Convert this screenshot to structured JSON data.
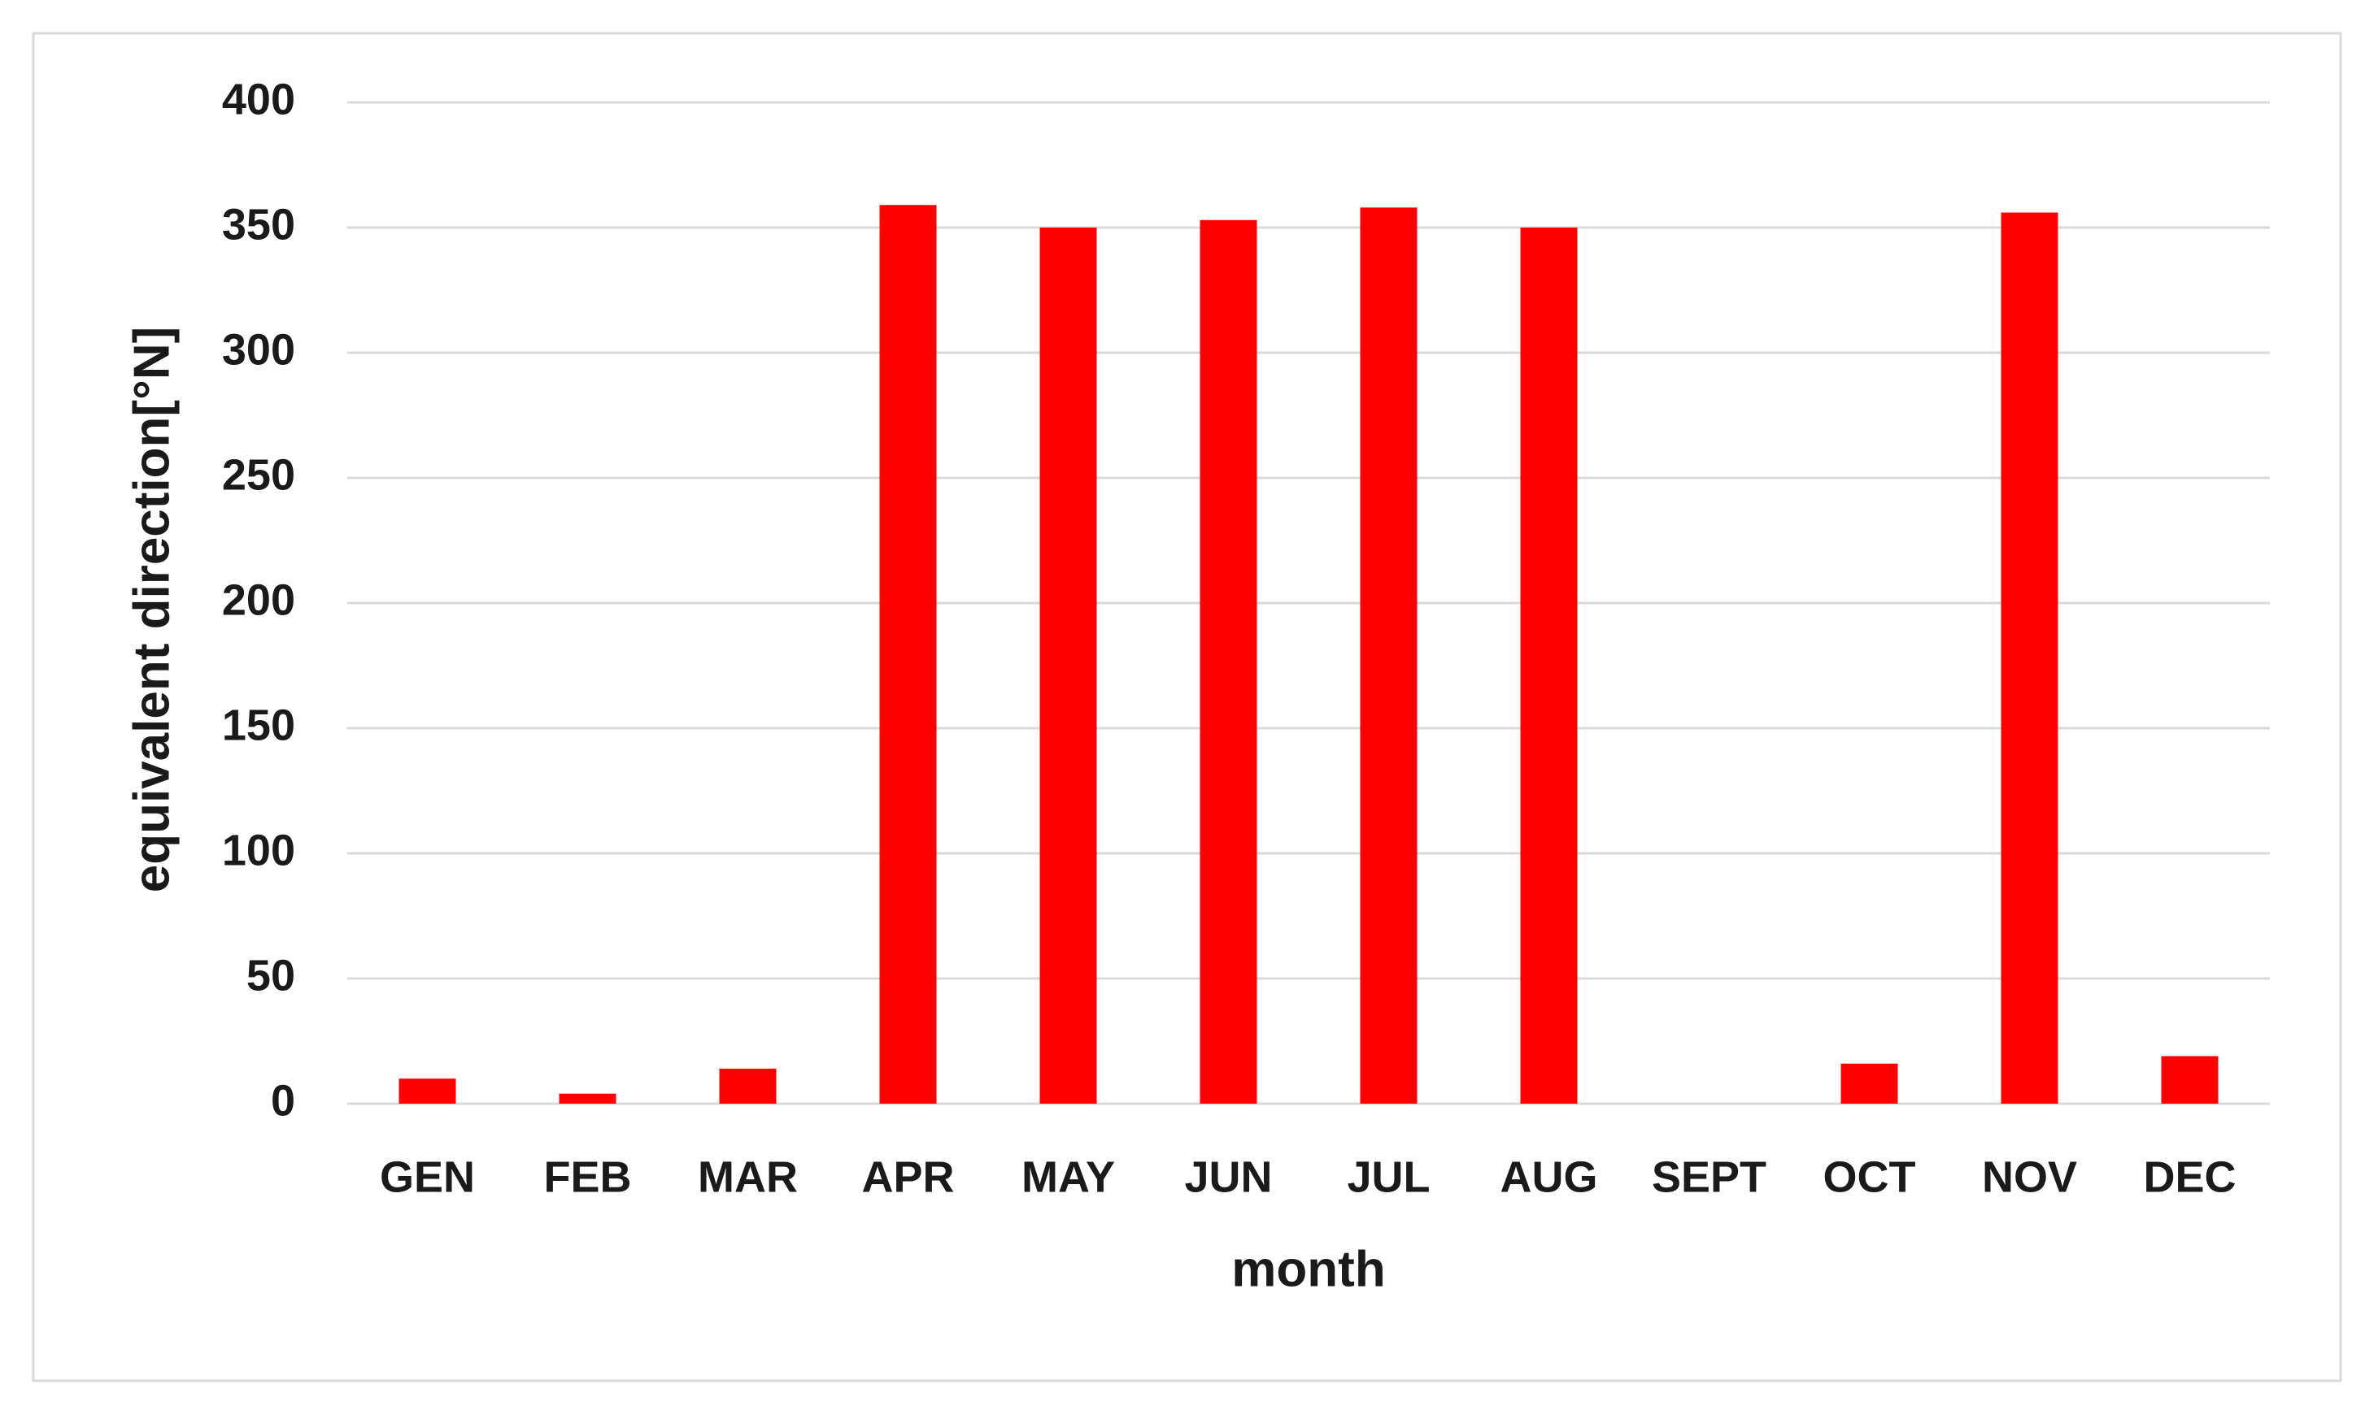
{
  "chart_data": {
    "type": "bar",
    "x_label": "month",
    "y_label": "equivalent direction[°N]",
    "categories": [
      "GEN",
      "FEB",
      "MAR",
      "APR",
      "MAY",
      "JUN",
      "JUL",
      "AUG",
      "SEPT",
      "OCT",
      "NOV",
      "DEC"
    ],
    "values": [
      10,
      4,
      14,
      359,
      350,
      353,
      358,
      350,
      0,
      16,
      356,
      19
    ],
    "color": "#ff0000",
    "ylim": [
      0,
      400
    ],
    "yticks": [
      0,
      50,
      100,
      150,
      200,
      250,
      300,
      350,
      400
    ],
    "grid": true
  }
}
